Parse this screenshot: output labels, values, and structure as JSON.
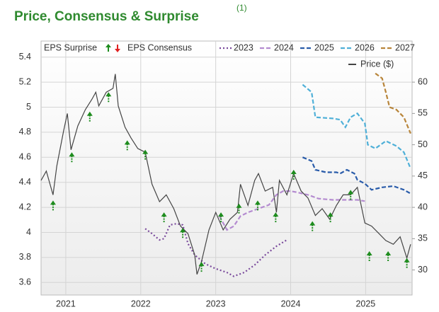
{
  "chart_data": {
    "type": "line",
    "title": "Price, Consensus & Surprise",
    "title_superscript": "(1)",
    "consensus_label": "EPS Consensus",
    "grid": true,
    "xlim": [
      2020.67,
      2025.62
    ],
    "xticks": [
      2021,
      2022,
      2023,
      2024,
      2025
    ],
    "ylim": [
      3.5,
      5.5
    ],
    "yticks": [
      3.6,
      3.8,
      4,
      4.2,
      4.4,
      4.6,
      4.8,
      5,
      5.2,
      5.4
    ],
    "y2lim": [
      26,
      66
    ],
    "y2ticks": [
      30,
      35,
      40,
      45,
      50,
      55,
      60
    ],
    "surprise": {
      "name": "EPS Surprise",
      "color": "#1e8c1e",
      "down_color": "#e02020",
      "axis": "y2",
      "x": [
        2020.83,
        2021.08,
        2021.32,
        2021.57,
        2021.82,
        2022.06,
        2022.31,
        2022.56,
        2022.81,
        2023.07,
        2023.31,
        2023.56,
        2023.8,
        2024.04,
        2024.29,
        2024.53,
        2024.8,
        2025.05,
        2025.3,
        2025.55
      ],
      "values": [
        41.1,
        48.8,
        55.3,
        58.4,
        50.7,
        49.2,
        39.2,
        36.7,
        31.3,
        39.2,
        40.6,
        41.1,
        39.2,
        46.0,
        37.8,
        39.2,
        42.8,
        33.0,
        33.0,
        31.9
      ]
    },
    "series": [
      {
        "name": "2023",
        "color": "#7a4a9c",
        "style": "dotted",
        "x": [
          2022.06,
          2022.15,
          2022.25,
          2022.31,
          2022.39,
          2022.48,
          2022.56,
          2022.63,
          2022.72,
          2022.86,
          2023.0,
          2023.15,
          2023.24,
          2023.38,
          2023.52,
          2023.66,
          2023.81,
          2023.95
        ],
        "values": [
          4.03,
          3.99,
          3.94,
          3.95,
          4.06,
          4.07,
          4.06,
          3.91,
          3.82,
          3.75,
          3.71,
          3.68,
          3.65,
          3.68,
          3.74,
          3.82,
          3.89,
          3.94
        ]
      },
      {
        "name": "2024",
        "color": "#b48bd0",
        "style": "dashed",
        "x": [
          2023.05,
          2023.15,
          2023.24,
          2023.33,
          2023.43,
          2023.57,
          2023.71,
          2023.81,
          2023.9,
          2024.0,
          2024.09,
          2024.23,
          2024.37,
          2024.56,
          2024.75,
          2024.89,
          2024.99
        ],
        "values": [
          4.13,
          4.02,
          4.05,
          4.13,
          4.16,
          4.19,
          4.22,
          4.3,
          4.33,
          4.33,
          4.32,
          4.3,
          4.27,
          4.26,
          4.26,
          4.26,
          4.25
        ]
      },
      {
        "name": "2025",
        "color": "#2a5caa",
        "style": "dashed",
        "x": [
          2024.16,
          2024.28,
          2024.33,
          2024.47,
          2024.61,
          2024.66,
          2024.75,
          2024.85,
          2024.89,
          2024.99,
          2025.08,
          2025.22,
          2025.37,
          2025.51,
          2025.6
        ],
        "values": [
          4.6,
          4.57,
          4.5,
          4.48,
          4.48,
          4.47,
          4.5,
          4.47,
          4.42,
          4.39,
          4.34,
          4.36,
          4.37,
          4.34,
          4.31
        ]
      },
      {
        "name": "2026",
        "color": "#4fb0d8",
        "style": "dashed",
        "x": [
          2024.16,
          2024.28,
          2024.33,
          2024.56,
          2024.66,
          2024.73,
          2024.8,
          2024.89,
          2024.99,
          2025.03,
          2025.13,
          2025.27,
          2025.41,
          2025.51,
          2025.6
        ],
        "values": [
          5.18,
          5.12,
          4.92,
          4.91,
          4.9,
          4.84,
          4.92,
          4.95,
          4.87,
          4.7,
          4.67,
          4.73,
          4.69,
          4.64,
          4.51
        ]
      },
      {
        "name": "2027",
        "color": "#b8853a",
        "style": "dashed",
        "x": [
          2025.13,
          2025.22,
          2025.27,
          2025.32,
          2025.41,
          2025.51,
          2025.6
        ],
        "values": [
          5.27,
          5.23,
          5.12,
          5.0,
          4.98,
          4.92,
          4.79
        ]
      },
      {
        "name": "Price ($)",
        "color": "#444444",
        "style": "solid",
        "axis": "y2",
        "x": [
          2020.67,
          2020.74,
          2020.83,
          2020.88,
          2020.97,
          2021.02,
          2021.07,
          2021.16,
          2021.26,
          2021.35,
          2021.4,
          2021.44,
          2021.54,
          2021.63,
          2021.66,
          2021.7,
          2021.79,
          2021.87,
          2021.96,
          2022.06,
          2022.15,
          2022.25,
          2022.34,
          2022.44,
          2022.53,
          2022.63,
          2022.72,
          2022.75,
          2022.81,
          2022.91,
          2023.0,
          2023.1,
          2023.19,
          2023.29,
          2023.33,
          2023.43,
          2023.52,
          2023.57,
          2023.66,
          2023.76,
          2023.81,
          2023.85,
          2023.95,
          2024.04,
          2024.14,
          2024.23,
          2024.33,
          2024.42,
          2024.52,
          2024.61,
          2024.7,
          2024.8,
          2024.89,
          2024.99,
          2025.08,
          2025.18,
          2025.27,
          2025.37,
          2025.46,
          2025.55,
          2025.6
        ],
        "values": [
          44.3,
          45.8,
          42.0,
          46.6,
          52.2,
          55.0,
          49.2,
          53.0,
          55.6,
          57.3,
          58.4,
          56.2,
          58.4,
          59.0,
          61.3,
          56.2,
          52.8,
          51.1,
          49.4,
          48.8,
          43.7,
          40.9,
          42.0,
          39.8,
          37.0,
          35.8,
          32.4,
          29.3,
          31.3,
          36.4,
          39.2,
          36.4,
          38.1,
          39.2,
          43.7,
          40.3,
          44.3,
          45.4,
          42.6,
          43.2,
          39.2,
          44.3,
          42.0,
          45.4,
          42.6,
          41.5,
          38.7,
          39.8,
          38.1,
          40.3,
          42.0,
          42.0,
          43.2,
          37.5,
          37.0,
          35.8,
          34.7,
          34.1,
          35.3,
          31.9,
          34.1
        ]
      }
    ]
  }
}
